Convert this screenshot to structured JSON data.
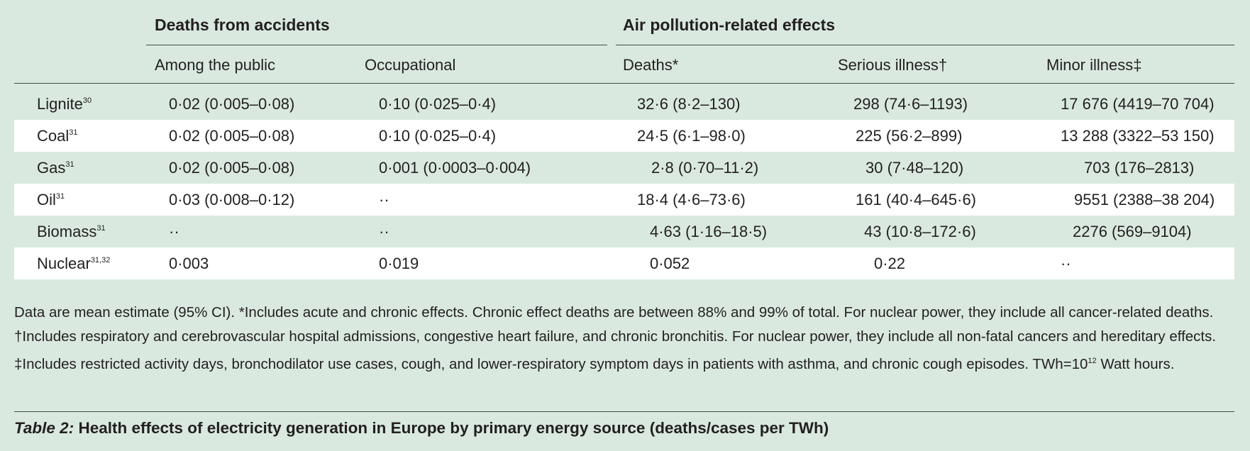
{
  "header": {
    "group_accidents": "Deaths from accidents",
    "group_pollution": "Air pollution-related effects",
    "columns": [
      "Among the public",
      "Occupational",
      "Deaths*",
      "Serious illness†",
      "Minor illness‡"
    ]
  },
  "rows": [
    {
      "source": "Lignite",
      "ref": "30",
      "cells": [
        "0·02 (0·005–0·08)",
        "0·10 (0·025–0·4)",
        "32·6 (8·2–130)",
        "298 (74·6–1193)",
        "17 676 (4419–70 704)"
      ]
    },
    {
      "source": "Coal",
      "ref": "31",
      "cells": [
        "0·02 (0·005–0·08)",
        "0·10 (0·025–0·4)",
        "24·5 (6·1–98·0)",
        "225 (56·2–899)",
        "13 288 (3322–53 150)"
      ]
    },
    {
      "source": "Gas",
      "ref": "31",
      "cells": [
        "0·02 (0·005–0·08)",
        "0·001 (0·0003–0·004)",
        "2·8 (0·70–11·2)",
        "30 (7·48–120)",
        "703 (176–2813)"
      ]
    },
    {
      "source": "Oil",
      "ref": "31",
      "cells": [
        "0·03 (0·008–0·12)",
        "··",
        "18·4 (4·6–73·6)",
        "161 (40·4–645·6)",
        "9551 (2388–38 204)"
      ]
    },
    {
      "source": "Biomass",
      "ref": "31",
      "cells": [
        "··",
        "··",
        "4·63 (1·16–18·5)",
        "43 (10·8–172·6)",
        "2276 (569–9104)"
      ]
    },
    {
      "source": "Nuclear",
      "ref": "31,32",
      "cells": [
        "0·003",
        "0·019",
        "0·052",
        "0·22",
        "··"
      ]
    }
  ],
  "footnote": {
    "text_before_sup": "Data are mean estimate (95% CI). *Includes acute and chronic effects. Chronic effect deaths are between 88% and 99% of total. For nuclear power, they include all cancer-related deaths. †Includes respiratory and cerebrovascular hospital admissions, congestive heart failure, and chronic bronchitis. For nuclear power, they include all non-fatal cancers and hereditary effects. ‡Includes restricted activity days, bronchodilator use cases, cough, and lower-respiratory symptom days in patients with asthma, and chronic cough episodes. TWh=10",
    "sup": "12",
    "text_after_sup": " Watt hours."
  },
  "caption": {
    "number": "Table 2:",
    "title": " Health effects of electricity generation in Europe by primary energy source (deaths/cases per TWh)"
  }
}
